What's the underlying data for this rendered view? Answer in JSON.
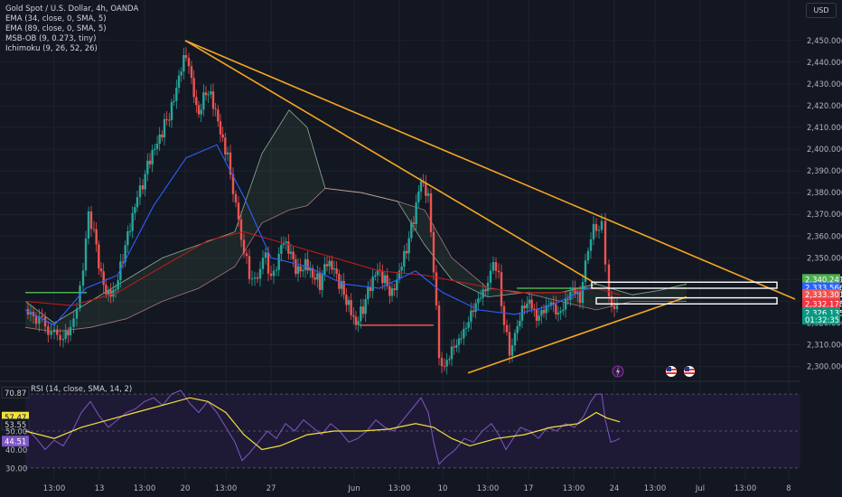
{
  "legend": {
    "title": "Gold Spot / U.S. Dollar, 4h, OANDA",
    "indicators": [
      "EMA (34, close, 0, SMA, 5)",
      "EMA (89, close, 0, SMA, 5)",
      "MSB-OB (9, 0.273, tiny)",
      "Ichimoku (9, 26, 52, 26)"
    ]
  },
  "currency": "USD",
  "rsi_legend": "RSI (14, close, SMA, 14, 2)",
  "colors": {
    "bg": "#131722",
    "grid": "#1e222d",
    "up": "#26a69a",
    "down": "#ef5350",
    "trend": "#f5a623",
    "ema_fast": "#2962ff",
    "ema_slow": "#b71c1c",
    "rsi_line": "#7e57c2",
    "rsi_ma": "#f3e13a",
    "rsi_band": "#1e1a36"
  },
  "chart_data": [
    {
      "type": "candlestick",
      "title": "Gold Spot / U.S. Dollar, 4h, OANDA",
      "ylim": [
        2294,
        2457
      ],
      "y_ticks": [
        "2,450.000",
        "2,440.000",
        "2,430.000",
        "2,420.000",
        "2,410.000",
        "2,400.000",
        "2,390.000",
        "2,380.000",
        "2,370.000",
        "2,360.000",
        "2,350.000",
        "2,340.000",
        "2,330.000",
        "2,320.000",
        "2,310.000",
        "2,300.000"
      ],
      "x_ticks": [
        "13:00",
        "13",
        "13:00",
        "20",
        "13:00",
        "27",
        "Jun",
        "13:00",
        "10",
        "13:00",
        "17",
        "13:00",
        "24",
        "13:00",
        "Jul",
        "13:00",
        "8"
      ],
      "x_tick_pos": [
        60,
        110,
        160,
        205,
        250,
        300,
        392,
        442,
        490,
        540,
        585,
        635,
        680,
        725,
        775,
        825,
        873
      ],
      "price_labels": [
        {
          "value": "2,340.241",
          "y": 2340.24,
          "color": "#4caf50"
        },
        {
          "value": "2,333.566",
          "y": 2336.4,
          "color": "#2962ff"
        },
        {
          "value": "2,333.301",
          "y": 2333.3,
          "color": "#ef5350"
        },
        {
          "value": "2,332.178",
          "y": 2328.9,
          "color": "#f23645"
        },
        {
          "value": "2,326.135",
          "y": 2324.8,
          "color": "#089981"
        },
        {
          "value": "01:32:35",
          "y": 2321.6,
          "color": "#089981"
        }
      ],
      "close_path": [
        [
          28,
          2326
        ],
        [
          40,
          2322
        ],
        [
          50,
          2318
        ],
        [
          60,
          2316
        ],
        [
          70,
          2312
        ],
        [
          78,
          2316
        ],
        [
          85,
          2326
        ],
        [
          92,
          2345
        ],
        [
          98,
          2370
        ],
        [
          104,
          2360
        ],
        [
          112,
          2340
        ],
        [
          120,
          2334
        ],
        [
          128,
          2338
        ],
        [
          136,
          2352
        ],
        [
          144,
          2364
        ],
        [
          152,
          2376
        ],
        [
          158,
          2385
        ],
        [
          166,
          2394
        ],
        [
          174,
          2400
        ],
        [
          182,
          2410
        ],
        [
          190,
          2420
        ],
        [
          198,
          2436
        ],
        [
          206,
          2446
        ],
        [
          212,
          2432
        ],
        [
          220,
          2418
        ],
        [
          228,
          2428
        ],
        [
          236,
          2420
        ],
        [
          244,
          2405
        ],
        [
          252,
          2395
        ],
        [
          258,
          2380
        ],
        [
          264,
          2366
        ],
        [
          270,
          2352
        ],
        [
          276,
          2344
        ],
        [
          282,
          2340
        ],
        [
          288,
          2346
        ],
        [
          294,
          2352
        ],
        [
          300,
          2338
        ],
        [
          306,
          2346
        ],
        [
          314,
          2356
        ],
        [
          322,
          2350
        ],
        [
          330,
          2344
        ],
        [
          338,
          2350
        ],
        [
          346,
          2344
        ],
        [
          354,
          2338
        ],
        [
          362,
          2346
        ],
        [
          370,
          2342
        ],
        [
          378,
          2336
        ],
        [
          386,
          2330
        ],
        [
          394,
          2322
        ],
        [
          402,
          2328
        ],
        [
          410,
          2336
        ],
        [
          418,
          2342
        ],
        [
          426,
          2338
        ],
        [
          434,
          2334
        ],
        [
          442,
          2346
        ],
        [
          450,
          2356
        ],
        [
          458,
          2368
        ],
        [
          466,
          2384
        ],
        [
          474,
          2376
        ],
        [
          480,
          2345
        ],
        [
          486,
          2305
        ],
        [
          492,
          2300
        ],
        [
          500,
          2308
        ],
        [
          508,
          2312
        ],
        [
          516,
          2318
        ],
        [
          524,
          2326
        ],
        [
          532,
          2332
        ],
        [
          540,
          2338
        ],
        [
          546,
          2350
        ],
        [
          552,
          2340
        ],
        [
          558,
          2318
        ],
        [
          564,
          2306
        ],
        [
          570,
          2314
        ],
        [
          578,
          2326
        ],
        [
          586,
          2330
        ],
        [
          594,
          2322
        ],
        [
          602,
          2326
        ],
        [
          610,
          2330
        ],
        [
          618,
          2324
        ],
        [
          626,
          2330
        ],
        [
          634,
          2336
        ],
        [
          642,
          2330
        ],
        [
          648,
          2346
        ],
        [
          654,
          2360
        ],
        [
          660,
          2365
        ],
        [
          666,
          2366
        ],
        [
          670,
          2343
        ],
        [
          674,
          2332
        ],
        [
          680,
          2328
        ],
        [
          686,
          2326
        ]
      ],
      "ema_fast": [
        [
          28,
          2326
        ],
        [
          60,
          2319
        ],
        [
          95,
          2336
        ],
        [
          130,
          2342
        ],
        [
          170,
          2374
        ],
        [
          206,
          2396
        ],
        [
          240,
          2402
        ],
        [
          270,
          2378
        ],
        [
          300,
          2350
        ],
        [
          340,
          2346
        ],
        [
          380,
          2338
        ],
        [
          420,
          2336
        ],
        [
          460,
          2344
        ],
        [
          490,
          2334
        ],
        [
          530,
          2326
        ],
        [
          570,
          2324
        ],
        [
          610,
          2328
        ],
        [
          650,
          2336
        ],
        [
          686,
          2336
        ]
      ],
      "ema_slow": [
        [
          28,
          2330
        ],
        [
          80,
          2328
        ],
        [
          130,
          2334
        ],
        [
          180,
          2346
        ],
        [
          230,
          2358
        ],
        [
          270,
          2362
        ],
        [
          320,
          2356
        ],
        [
          370,
          2350
        ],
        [
          420,
          2344
        ],
        [
          470,
          2342
        ],
        [
          520,
          2338
        ],
        [
          570,
          2334
        ],
        [
          620,
          2334
        ],
        [
          660,
          2336
        ],
        [
          686,
          2333
        ]
      ],
      "cloud_a": [
        [
          28,
          2330
        ],
        [
          60,
          2320
        ],
        [
          100,
          2330
        ],
        [
          140,
          2340
        ],
        [
          180,
          2350
        ],
        [
          220,
          2356
        ],
        [
          260,
          2362
        ],
        [
          290,
          2398
        ],
        [
          320,
          2418
        ],
        [
          340,
          2410
        ],
        [
          360,
          2382
        ],
        [
          400,
          2380
        ],
        [
          440,
          2376
        ],
        [
          470,
          2356
        ],
        [
          500,
          2340
        ],
        [
          540,
          2332
        ],
        [
          580,
          2334
        ],
        [
          620,
          2334
        ],
        [
          660,
          2338
        ],
        [
          700,
          2333
        ],
        [
          730,
          2335
        ],
        [
          760,
          2338
        ]
      ],
      "cloud_b": [
        [
          28,
          2318
        ],
        [
          60,
          2316
        ],
        [
          100,
          2318
        ],
        [
          140,
          2322
        ],
        [
          180,
          2330
        ],
        [
          220,
          2336
        ],
        [
          260,
          2346
        ],
        [
          290,
          2366
        ],
        [
          320,
          2372
        ],
        [
          340,
          2374
        ],
        [
          360,
          2382
        ],
        [
          400,
          2380
        ],
        [
          440,
          2376
        ],
        [
          470,
          2372
        ],
        [
          500,
          2350
        ],
        [
          540,
          2336
        ],
        [
          580,
          2334
        ],
        [
          620,
          2330
        ],
        [
          660,
          2326
        ],
        [
          700,
          2330
        ],
        [
          730,
          2330
        ],
        [
          760,
          2330
        ]
      ],
      "trendlines": [
        {
          "from": [
            205,
            2450
          ],
          "to": [
            880,
            2331
          ]
        },
        {
          "from": [
            205,
            2450
          ],
          "to": [
            660,
            2338
          ]
        },
        {
          "from": [
            518,
            2297
          ],
          "to": [
            760,
            2332
          ]
        }
      ],
      "levels": [
        {
          "y": 2334,
          "x0": 28,
          "x1": 96,
          "color": "#4caf50"
        },
        {
          "y": 2319,
          "x0": 398,
          "x1": 480,
          "color": "#ef5350"
        },
        {
          "y": 2336,
          "x0": 572,
          "x1": 660,
          "color": "#4caf50"
        }
      ],
      "zones": [
        {
          "y_top": 2338.8,
          "y_bot": 2336.0,
          "x0": 655,
          "x1": 860
        },
        {
          "y_top": 2331.6,
          "y_bot": 2328.8,
          "x0": 660,
          "x1": 860
        }
      ]
    },
    {
      "type": "line",
      "title": "RSI (14, close, SMA, 14, 2)",
      "ylim": [
        28,
        72
      ],
      "y_ticks": [
        "50.00",
        "40.00",
        "30.00"
      ],
      "band": [
        30,
        70
      ],
      "value_labels": [
        {
          "value": "70.87",
          "y": 70.87,
          "color": "#131722",
          "text": "#d1d4dc"
        },
        {
          "value": "57.47",
          "y": 57.47,
          "color": "#f3e13a",
          "text": "#131722"
        },
        {
          "value": "53.55",
          "y": 53.55,
          "color": "#131722",
          "text": "#d1d4dc"
        },
        {
          "value": "44.51",
          "y": 44.51,
          "color": "#7e57c2",
          "text": "#ffffff"
        }
      ],
      "rsi": [
        [
          28,
          52
        ],
        [
          40,
          46
        ],
        [
          50,
          40
        ],
        [
          60,
          45
        ],
        [
          70,
          42
        ],
        [
          80,
          50
        ],
        [
          90,
          60
        ],
        [
          100,
          66
        ],
        [
          110,
          58
        ],
        [
          120,
          52
        ],
        [
          130,
          56
        ],
        [
          140,
          60
        ],
        [
          150,
          62
        ],
        [
          160,
          66
        ],
        [
          170,
          68
        ],
        [
          180,
          64
        ],
        [
          190,
          70
        ],
        [
          200,
          72
        ],
        [
          210,
          65
        ],
        [
          220,
          60
        ],
        [
          230,
          66
        ],
        [
          240,
          60
        ],
        [
          250,
          52
        ],
        [
          260,
          44
        ],
        [
          268,
          34
        ],
        [
          276,
          38
        ],
        [
          286,
          44
        ],
        [
          296,
          50
        ],
        [
          306,
          46
        ],
        [
          316,
          54
        ],
        [
          326,
          50
        ],
        [
          336,
          56
        ],
        [
          346,
          52
        ],
        [
          356,
          48
        ],
        [
          366,
          54
        ],
        [
          376,
          50
        ],
        [
          386,
          44
        ],
        [
          396,
          46
        ],
        [
          406,
          50
        ],
        [
          416,
          56
        ],
        [
          426,
          52
        ],
        [
          436,
          50
        ],
        [
          446,
          56
        ],
        [
          456,
          62
        ],
        [
          466,
          68
        ],
        [
          474,
          60
        ],
        [
          480,
          44
        ],
        [
          486,
          32
        ],
        [
          494,
          36
        ],
        [
          504,
          40
        ],
        [
          514,
          46
        ],
        [
          524,
          44
        ],
        [
          534,
          50
        ],
        [
          544,
          54
        ],
        [
          552,
          48
        ],
        [
          560,
          40
        ],
        [
          568,
          46
        ],
        [
          576,
          52
        ],
        [
          586,
          50
        ],
        [
          596,
          46
        ],
        [
          606,
          52
        ],
        [
          616,
          50
        ],
        [
          626,
          54
        ],
        [
          636,
          52
        ],
        [
          646,
          58
        ],
        [
          654,
          66
        ],
        [
          660,
          70
        ],
        [
          666,
          70
        ],
        [
          670,
          56
        ],
        [
          676,
          44
        ],
        [
          682,
          45
        ],
        [
          686,
          46
        ]
      ],
      "rsi_ma": [
        [
          28,
          50
        ],
        [
          60,
          46
        ],
        [
          90,
          52
        ],
        [
          120,
          56
        ],
        [
          150,
          60
        ],
        [
          180,
          64
        ],
        [
          210,
          68
        ],
        [
          230,
          66
        ],
        [
          250,
          60
        ],
        [
          270,
          48
        ],
        [
          290,
          40
        ],
        [
          310,
          42
        ],
        [
          340,
          48
        ],
        [
          370,
          50
        ],
        [
          400,
          50
        ],
        [
          430,
          51
        ],
        [
          460,
          54
        ],
        [
          480,
          52
        ],
        [
          500,
          46
        ],
        [
          520,
          42
        ],
        [
          550,
          46
        ],
        [
          580,
          48
        ],
        [
          610,
          52
        ],
        [
          640,
          54
        ],
        [
          660,
          60
        ],
        [
          672,
          57
        ],
        [
          686,
          55
        ]
      ]
    }
  ],
  "events": [
    {
      "icon": "lightning-icon",
      "x": 684
    },
    {
      "icon": "us-flag-icon",
      "x": 743
    },
    {
      "icon": "us-flag-icon",
      "x": 763
    }
  ]
}
